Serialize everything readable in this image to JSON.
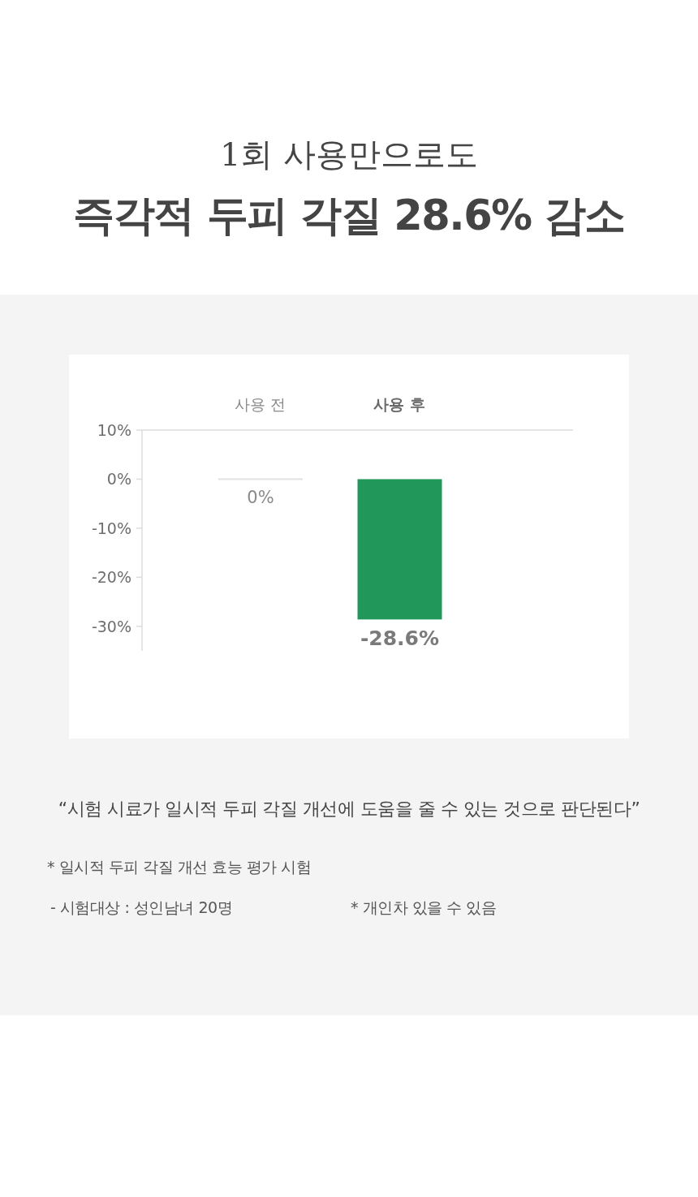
{
  "chart_data": {
    "type": "bar",
    "subtitle": "1회 사용만으로도",
    "title": "즉각적 두피 각질 28.6% 감소",
    "categories": [
      "사용 전",
      "사용 후"
    ],
    "values": [
      0,
      -28.6
    ],
    "colors": [
      "#e1e1e1",
      "#21975a"
    ],
    "value_labels": [
      "0%",
      "-28.6%"
    ],
    "ylim": [
      -35,
      10
    ],
    "yticks": [
      {
        "value": 10,
        "label": "10%"
      },
      {
        "value": 0,
        "label": "0%"
      },
      {
        "value": -10,
        "label": "-10%"
      },
      {
        "value": -20,
        "label": "-20%"
      },
      {
        "value": -30,
        "label": "-30%"
      }
    ],
    "annotations": [
      "“시험 시료가 일시적 두피 각질 개선에 도움을 줄 수 있는 것으로 판단된다”",
      "* 일시적 두피 각질 개선 효능 평가 시험",
      "- 시험대상 : 성인남녀 20명",
      "* 개인차 있을 수 있음"
    ]
  }
}
